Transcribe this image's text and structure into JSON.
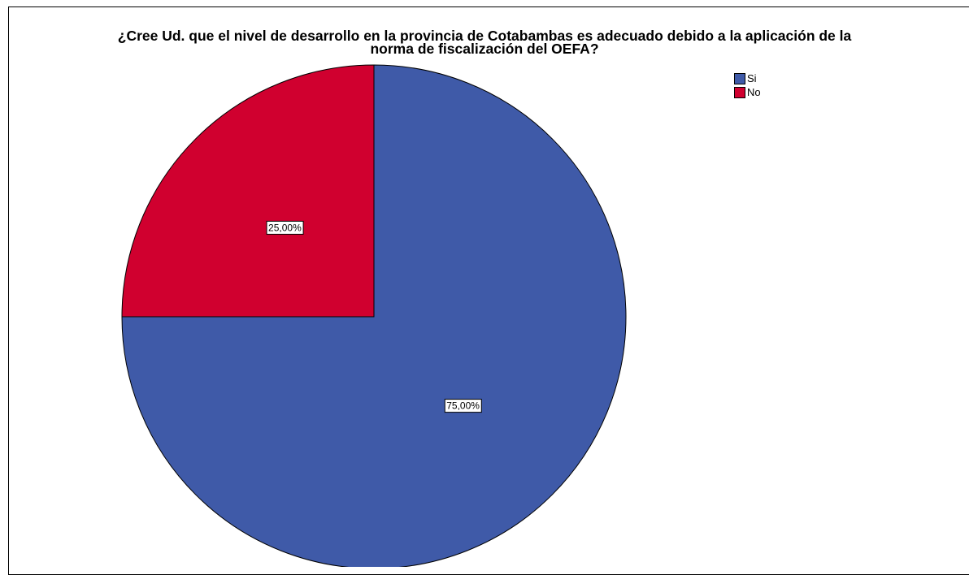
{
  "chart_data": {
    "type": "pie",
    "title": "¿Cree Ud. que el nivel de desarrollo en la provincia de Cotabambas es adecuado  debido a la aplicación de la\nnorma de fiscalización del OEFA?",
    "categories": [
      "Si",
      "No"
    ],
    "values": [
      75,
      25
    ],
    "data_labels": [
      "75,00%",
      "25,00%"
    ],
    "colors": [
      "#3f5aa8",
      "#d0002f"
    ],
    "legend": "top-right"
  }
}
